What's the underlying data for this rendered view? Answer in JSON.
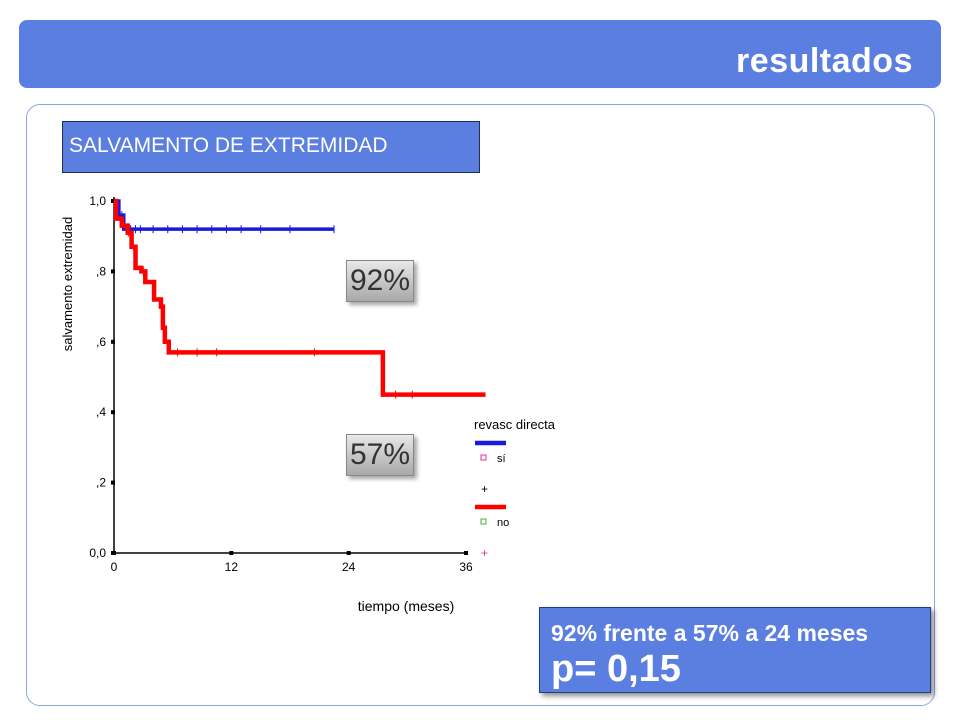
{
  "header": {
    "title": "resultados"
  },
  "section": {
    "label": "SALVAMENTO DE EXTREMIDAD"
  },
  "badges": {
    "top": "92%",
    "bottom": "57%"
  },
  "result": {
    "line1": "92% frente a 57% a 24 meses",
    "line2": "p= 0,15"
  },
  "colors": {
    "header": "#5b7fe0",
    "series_si": "#1a1adc",
    "series_no": "#ff0000"
  },
  "chart_data": {
    "type": "line",
    "xlabel": "tiempo (meses)",
    "ylabel": "salvamento extremidad",
    "xlim": [
      0,
      36
    ],
    "ylim": [
      0,
      1
    ],
    "x_ticks": [
      0,
      12,
      24,
      36
    ],
    "x_tick_labels": [
      "0",
      "12",
      "24",
      "36"
    ],
    "y_ticks": [
      0,
      0.2,
      0.4,
      0.6,
      0.8,
      1.0
    ],
    "y_tick_labels": [
      "0,0",
      ",2",
      ",4",
      ",6",
      ",8",
      "1,0"
    ],
    "legend": {
      "title": "revasc directa",
      "entries": [
        {
          "label": "sí",
          "color": "#1a1adc"
        },
        {
          "label": "no",
          "color": "#ff0000"
        }
      ],
      "position": "right"
    },
    "series": [
      {
        "name": "sí",
        "color": "#1a1adc",
        "steps": [
          [
            0,
            1.0
          ],
          [
            0.5,
            0.96
          ],
          [
            1.0,
            0.92
          ],
          [
            22.5,
            0.92
          ]
        ],
        "censored": [
          0.8,
          1.3,
          1.7,
          2.2,
          2.7,
          4,
          5.5,
          7,
          8.5,
          10,
          11.5,
          13,
          15,
          18,
          22.5
        ]
      },
      {
        "name": "no",
        "color": "#ff0000",
        "steps": [
          [
            0,
            1.0
          ],
          [
            0.2,
            0.95
          ],
          [
            0.8,
            0.93
          ],
          [
            1.4,
            0.91
          ],
          [
            1.8,
            0.87
          ],
          [
            2.2,
            0.81
          ],
          [
            2.8,
            0.8
          ],
          [
            3.2,
            0.77
          ],
          [
            4.1,
            0.72
          ],
          [
            4.8,
            0.7
          ],
          [
            5.0,
            0.64
          ],
          [
            5.2,
            0.6
          ],
          [
            5.6,
            0.57
          ],
          [
            27.5,
            0.45
          ],
          [
            38.0,
            0.45
          ]
        ],
        "censored": [
          1.5,
          2.0,
          3.0,
          6.5,
          8.5,
          10.5,
          20.5,
          28.8,
          30.5
        ]
      }
    ]
  }
}
